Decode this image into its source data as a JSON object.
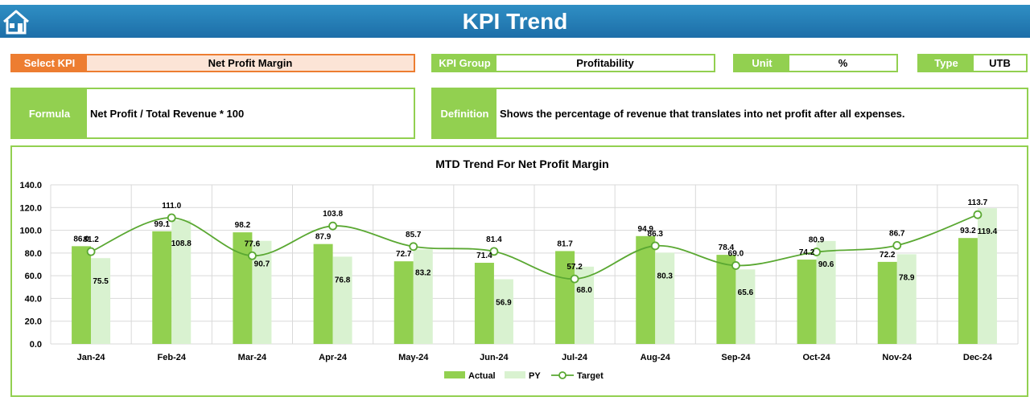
{
  "header": {
    "title": "KPI Trend",
    "home_icon": "home-icon"
  },
  "select_kpi": {
    "label": "Select KPI",
    "value": "Net Profit Margin"
  },
  "kpi_group": {
    "label": "KPI Group",
    "value": "Profitability"
  },
  "unit": {
    "label": "Unit",
    "value": "%"
  },
  "type": {
    "label": "Type",
    "value": "UTB"
  },
  "formula": {
    "label": "Formula",
    "value": "Net Profit / Total Revenue * 100"
  },
  "definition": {
    "label": "Definition",
    "value": "Shows the percentage of revenue that translates into net profit after all expenses."
  },
  "colors": {
    "accent": "#92d050",
    "select_accent": "#ed7d31",
    "select_fill": "#fce4d6",
    "py": "#d9f2d0",
    "target": "#5aa832",
    "header": "#1f77b4"
  },
  "chart_data": {
    "type": "bar",
    "title": "MTD Trend For Net Profit Margin",
    "categories": [
      "Jan-24",
      "Feb-24",
      "Mar-24",
      "Apr-24",
      "May-24",
      "Jun-24",
      "Jul-24",
      "Aug-24",
      "Sep-24",
      "Oct-24",
      "Nov-24",
      "Dec-24"
    ],
    "ylim": [
      0,
      140
    ],
    "yticks": [
      "0.0",
      "20.0",
      "40.0",
      "60.0",
      "80.0",
      "100.0",
      "120.0",
      "140.0"
    ],
    "grid": true,
    "legend_position": "bottom",
    "series": [
      {
        "name": "Actual",
        "kind": "bar",
        "color": "#92d050",
        "values": [
          86.0,
          99.1,
          98.2,
          87.9,
          72.7,
          71.4,
          81.7,
          94.9,
          78.4,
          74.2,
          72.2,
          93.2
        ],
        "labels": [
          "86.0",
          "99.1",
          "98.2",
          "87.9",
          "72.7",
          "71.4",
          "81.7",
          "94.9",
          "78.4",
          "74.2",
          "72.2",
          "93.2"
        ]
      },
      {
        "name": "PY",
        "kind": "bar",
        "color": "#d9f2d0",
        "values": [
          75.5,
          108.8,
          90.7,
          76.8,
          83.2,
          56.9,
          68.0,
          80.3,
          65.6,
          90.6,
          78.9,
          119.4
        ],
        "labels": [
          "75.5",
          "108.8",
          "90.7",
          "76.8",
          "83.2",
          "56.9",
          "68.0",
          "80.3",
          "65.6",
          "90.6",
          "78.9",
          "119.4"
        ]
      },
      {
        "name": "Target",
        "kind": "line",
        "color": "#5aa832",
        "values": [
          81.2,
          111.0,
          77.6,
          103.8,
          85.7,
          81.4,
          57.2,
          86.3,
          69.0,
          80.9,
          86.7,
          113.7
        ],
        "labels": [
          "81.2",
          "111.0",
          "77.6",
          "103.8",
          "85.7",
          "81.4",
          "57.2",
          "86.3",
          "69.0",
          "80.9",
          "86.7",
          "113.7"
        ]
      }
    ]
  }
}
